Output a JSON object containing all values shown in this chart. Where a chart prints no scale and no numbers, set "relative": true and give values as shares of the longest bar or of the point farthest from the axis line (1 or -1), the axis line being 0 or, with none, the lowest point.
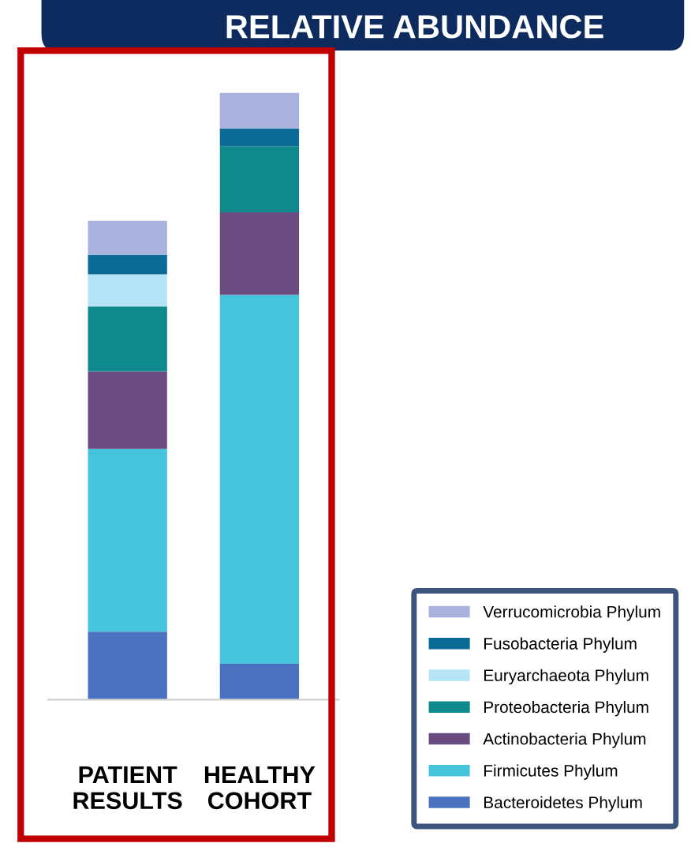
{
  "chart_data": {
    "type": "bar",
    "title": "RELATIVE ABUNDANCE",
    "stacked": true,
    "relative": true,
    "legend": "bottom right",
    "categories": [
      "PATIENT\nRESULTS",
      "HEALTHY\nCOHORT"
    ],
    "series": [
      {
        "name": "Bacteroidetes Phylum",
        "color": "#4a72c0",
        "values": [
          0.112,
          0.059
        ]
      },
      {
        "name": "Firmicutes Phylum",
        "color": "#45c4dc",
        "values": [
          0.301,
          0.608
        ]
      },
      {
        "name": "Actinobacteria Phylum",
        "color": "#6b4c80",
        "values": [
          0.128,
          0.136
        ]
      },
      {
        "name": "Proteobacteria Phylum",
        "color": "#0e8a8c",
        "values": [
          0.107,
          0.109
        ]
      },
      {
        "name": "Euryarchaeota Phylum",
        "color": "#b4e4f6",
        "values": [
          0.053,
          0
        ]
      },
      {
        "name": "Fusobacteria Phylum",
        "color": "#0b6a96",
        "values": [
          0.032,
          0.029
        ]
      },
      {
        "name": "Verrucomicrobia Phylum",
        "color": "#a9b2dc",
        "values": [
          0.056,
          0.059
        ]
      }
    ]
  }
}
